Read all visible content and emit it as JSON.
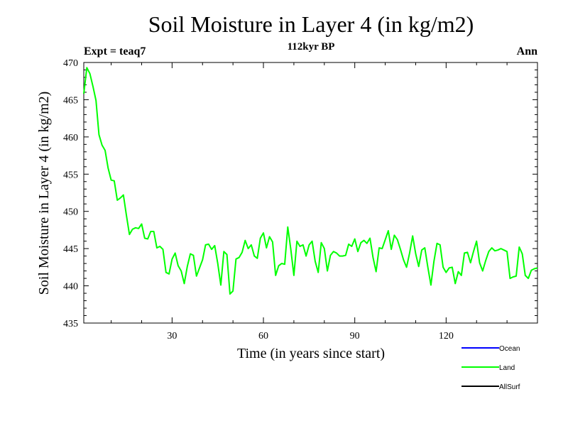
{
  "chart_data": {
    "type": "line",
    "title": "Soil Moisture in Layer 4 (in kg/m2)",
    "subtitle": "112kyr BP",
    "experiment_label": "Expt = teaq7",
    "season_label": "Ann",
    "xlabel": "Time (in years since start)",
    "ylabel": "Soil Moisture in Layer 4 (in kg/m2)",
    "xlim": [
      1,
      150
    ],
    "ylim": [
      435,
      470
    ],
    "xticks": [
      30,
      60,
      90,
      120
    ],
    "yticks": [
      435,
      440,
      445,
      450,
      455,
      460,
      465,
      470
    ],
    "grid": false,
    "legend": {
      "placement": "bottom-right",
      "entries": [
        {
          "name": "Ocean",
          "color": "#0000ff"
        },
        {
          "name": "Land",
          "color": "#00ff00"
        },
        {
          "name": "AllSurf",
          "color": "#000000"
        }
      ]
    },
    "series": [
      {
        "name": "Land",
        "color": "#00ff00",
        "x_start": 1,
        "x_step": 1,
        "values": [
          465.8,
          469.3,
          468.5,
          466.8,
          464.9,
          460.3,
          458.9,
          458.2,
          455.8,
          454.2,
          454.1,
          451.5,
          451.8,
          452.2,
          449.5,
          446.9,
          447.6,
          447.8,
          447.7,
          448.3,
          446.4,
          446.3,
          447.3,
          447.3,
          445.1,
          445.3,
          444.9,
          441.8,
          441.6,
          443.6,
          444.4,
          442.7,
          442.0,
          440.3,
          442.6,
          444.3,
          444.1,
          441.3,
          442.4,
          443.5,
          445.5,
          445.6,
          444.9,
          445.4,
          443.0,
          440.1,
          444.6,
          444.2,
          438.9,
          439.3,
          443.6,
          443.8,
          444.5,
          446.1,
          445.0,
          445.5,
          444.0,
          443.7,
          446.4,
          447.1,
          445.1,
          446.6,
          445.9,
          441.4,
          442.7,
          443.0,
          442.9,
          447.9,
          444.9,
          441.4,
          446.0,
          445.3,
          445.5,
          444.0,
          445.5,
          446.0,
          443.3,
          441.8,
          445.8,
          445.0,
          442.0,
          444.1,
          444.6,
          444.4,
          444.0,
          444.0,
          444.1,
          445.6,
          445.3,
          446.3,
          444.6,
          445.8,
          446.1,
          445.7,
          446.4,
          443.8,
          441.9,
          445.1,
          445.0,
          446.2,
          447.4,
          444.9,
          446.8,
          446.2,
          444.9,
          443.5,
          442.5,
          444.4,
          446.7,
          444.3,
          442.6,
          444.8,
          445.1,
          442.5,
          440.1,
          443.3,
          445.7,
          445.5,
          442.5,
          441.8,
          442.4,
          442.5,
          440.3,
          441.9,
          441.4,
          444.4,
          444.5,
          443.1,
          444.6,
          446.0,
          443.1,
          442.0,
          443.4,
          444.6,
          445.1,
          444.7,
          444.8,
          445.0,
          444.8,
          444.6,
          441.0,
          441.2,
          441.3,
          445.2,
          444.3,
          441.4,
          441.0,
          442.1,
          442.3,
          442.4
        ]
      }
    ]
  }
}
